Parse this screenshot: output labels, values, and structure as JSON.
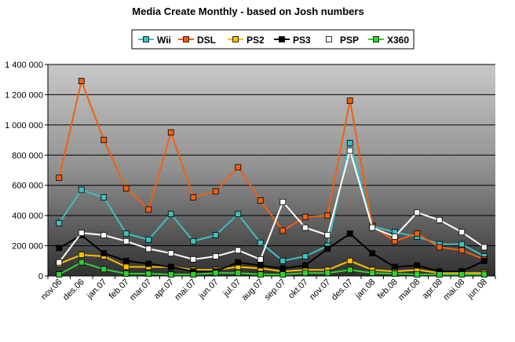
{
  "chart_data": {
    "type": "line",
    "title": "Media Create Monthly - based on Josh numbers",
    "xlabel": "",
    "ylabel": "",
    "ylim": [
      0,
      1400000
    ],
    "yticks": [
      0,
      200000,
      400000,
      600000,
      800000,
      1000000,
      1200000,
      1400000
    ],
    "ytick_labels": [
      "0",
      "200 000",
      "400 000",
      "600 000",
      "800 000",
      "1 000 000",
      "1 200 000",
      "1 400 000"
    ],
    "grid": true,
    "legend_position": "top",
    "categories": [
      "nov.06",
      "des.06",
      "jan.07",
      "feb.07",
      "mar.07",
      "apr.07",
      "mai.07",
      "jun.07",
      "jul.07",
      "aug.07",
      "sep.07",
      "okt.07",
      "nov.07",
      "des.07",
      "jan.08",
      "feb.08",
      "mar.08",
      "apr.08",
      "mai.08",
      "jun.08"
    ],
    "series": [
      {
        "name": "Wii",
        "color": "#3fbfbf",
        "marker_fill": "#3fbfbf",
        "values": [
          350000,
          570000,
          520000,
          280000,
          240000,
          410000,
          230000,
          270000,
          410000,
          220000,
          100000,
          130000,
          200000,
          880000,
          330000,
          290000,
          260000,
          210000,
          210000,
          130000
        ]
      },
      {
        "name": "DSL",
        "color": "#f06010",
        "marker_fill": "#f06010",
        "values": [
          650000,
          1290000,
          900000,
          580000,
          440000,
          950000,
          520000,
          560000,
          720000,
          500000,
          300000,
          390000,
          400000,
          1160000,
          330000,
          230000,
          280000,
          190000,
          170000,
          110000
        ]
      },
      {
        "name": "PS2",
        "color": "#ffbf00",
        "marker_fill": "#ffbf00",
        "values": [
          80000,
          140000,
          130000,
          60000,
          60000,
          60000,
          40000,
          40000,
          60000,
          50000,
          30000,
          40000,
          40000,
          100000,
          40000,
          30000,
          40000,
          20000,
          20000,
          20000
        ]
      },
      {
        "name": "PS3",
        "color": "#000000",
        "marker_fill": "#000000",
        "values": [
          185000,
          270000,
          150000,
          100000,
          80000,
          60000,
          30000,
          30000,
          90000,
          70000,
          50000,
          70000,
          180000,
          280000,
          150000,
          60000,
          70000,
          30000,
          30000,
          100000
        ]
      },
      {
        "name": "PSP",
        "color": "#ffffff",
        "marker_fill": "#ffffff",
        "values": [
          90000,
          285000,
          270000,
          230000,
          180000,
          150000,
          110000,
          130000,
          170000,
          110000,
          490000,
          320000,
          270000,
          830000,
          320000,
          260000,
          420000,
          370000,
          290000,
          190000
        ]
      },
      {
        "name": "X360",
        "color": "#30d030",
        "marker_fill": "#30d030",
        "values": [
          10000,
          90000,
          45000,
          15000,
          15000,
          10000,
          10000,
          20000,
          20000,
          10000,
          10000,
          20000,
          20000,
          40000,
          20000,
          15000,
          10000,
          10000,
          10000,
          10000
        ]
      }
    ]
  }
}
